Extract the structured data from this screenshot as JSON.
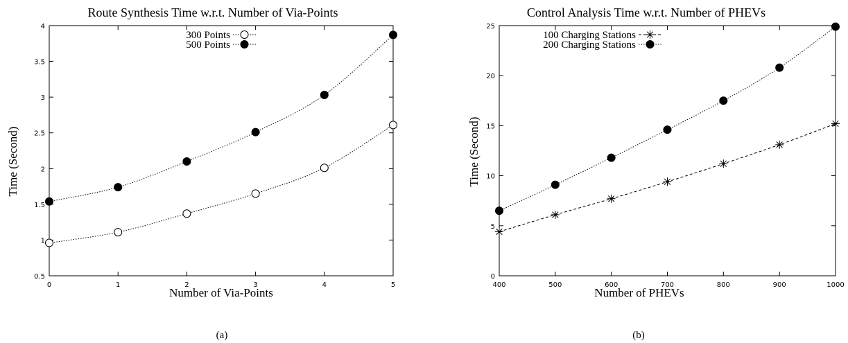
{
  "chart_data": [
    {
      "type": "line",
      "title": "Route Synthesis Time w.r.t. Number of Via-Points",
      "xlabel": "Number of Via-Points",
      "ylabel": "Time (Second)",
      "xlim": [
        0,
        5
      ],
      "ylim": [
        0.5,
        4
      ],
      "xticks": [
        0,
        1,
        2,
        3,
        4,
        5
      ],
      "yticks": [
        0.5,
        1,
        1.5,
        2,
        2.5,
        3,
        3.5,
        4
      ],
      "legend_position": "top-center",
      "grid": false,
      "caption": "(a)",
      "x": [
        0,
        1,
        2,
        3,
        4,
        5
      ],
      "series": [
        {
          "name": "300 Points",
          "marker": "open-circle",
          "line": "dotted",
          "values": [
            0.96,
            1.11,
            1.37,
            1.65,
            2.01,
            2.61
          ]
        },
        {
          "name": "500 Points",
          "marker": "filled-circle",
          "line": "dotted",
          "values": [
            1.54,
            1.74,
            2.1,
            2.51,
            3.03,
            3.87
          ]
        }
      ]
    },
    {
      "type": "line",
      "title": "Control Analysis Time w.r.t. Number of PHEVs",
      "xlabel": "Number of PHEVs",
      "ylabel": "Time (Second)",
      "xlim": [
        400,
        1000
      ],
      "ylim": [
        0,
        25
      ],
      "xticks": [
        400,
        500,
        600,
        700,
        800,
        900,
        1000
      ],
      "yticks": [
        0,
        5,
        10,
        15,
        20,
        25
      ],
      "legend_position": "top-center",
      "grid": false,
      "caption": "(b)",
      "x": [
        400,
        500,
        600,
        700,
        800,
        900,
        1000
      ],
      "series": [
        {
          "name": "100 Charging Stations",
          "marker": "asterisk",
          "line": "dashed",
          "values": [
            4.4,
            6.1,
            7.7,
            9.4,
            11.2,
            13.1,
            15.2
          ]
        },
        {
          "name": "200 Charging Stations",
          "marker": "filled-circle",
          "line": "dotted",
          "values": [
            6.5,
            9.1,
            11.8,
            14.6,
            17.5,
            20.8,
            24.9
          ]
        }
      ]
    }
  ]
}
